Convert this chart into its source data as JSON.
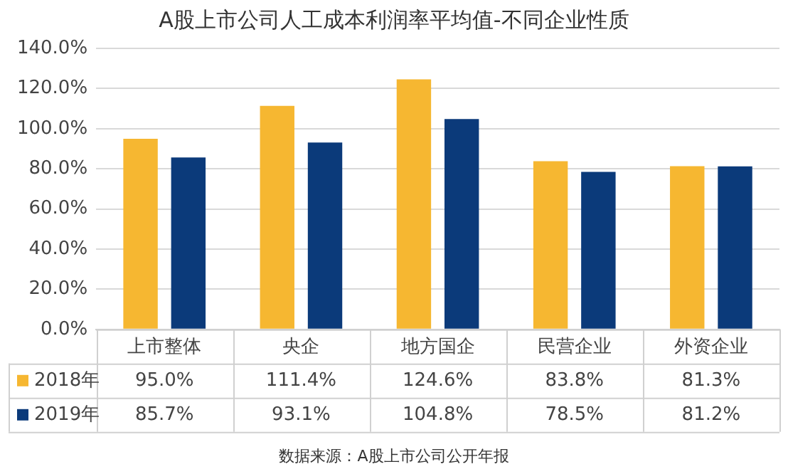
{
  "chart_data": {
    "type": "bar",
    "title": "A股上市公司人工成本利润率平均值-不同企业性质",
    "categories": [
      "上市整体",
      "央企",
      "地方国企",
      "民营企业",
      "外资企业"
    ],
    "series": [
      {
        "name": "2018年",
        "color": "#f6b731",
        "values": [
          95.0,
          111.4,
          124.6,
          83.8,
          81.3
        ],
        "value_labels": [
          "95.0%",
          "111.4%",
          "124.6%",
          "83.8%",
          "81.3%"
        ]
      },
      {
        "name": "2019年",
        "color": "#0b3a7a",
        "values": [
          85.7,
          93.1,
          104.8,
          78.5,
          81.2
        ],
        "value_labels": [
          "85.7%",
          "93.1%",
          "104.8%",
          "78.5%",
          "81.2%"
        ]
      }
    ],
    "ylim": [
      0,
      140
    ],
    "yticks": [
      {
        "value": 0,
        "label": "0.0%"
      },
      {
        "value": 20,
        "label": "20.0%"
      },
      {
        "value": 40,
        "label": "40.0%"
      },
      {
        "value": 60,
        "label": "60.0%"
      },
      {
        "value": 80,
        "label": "80.0%"
      },
      {
        "value": 100,
        "label": "100.0%"
      },
      {
        "value": 120,
        "label": "120.0%"
      },
      {
        "value": 140,
        "label": "140.0%"
      }
    ],
    "grid": "y",
    "legend": "bottom",
    "annotations": [
      "数据来源：A股上市公司公开年报"
    ]
  }
}
